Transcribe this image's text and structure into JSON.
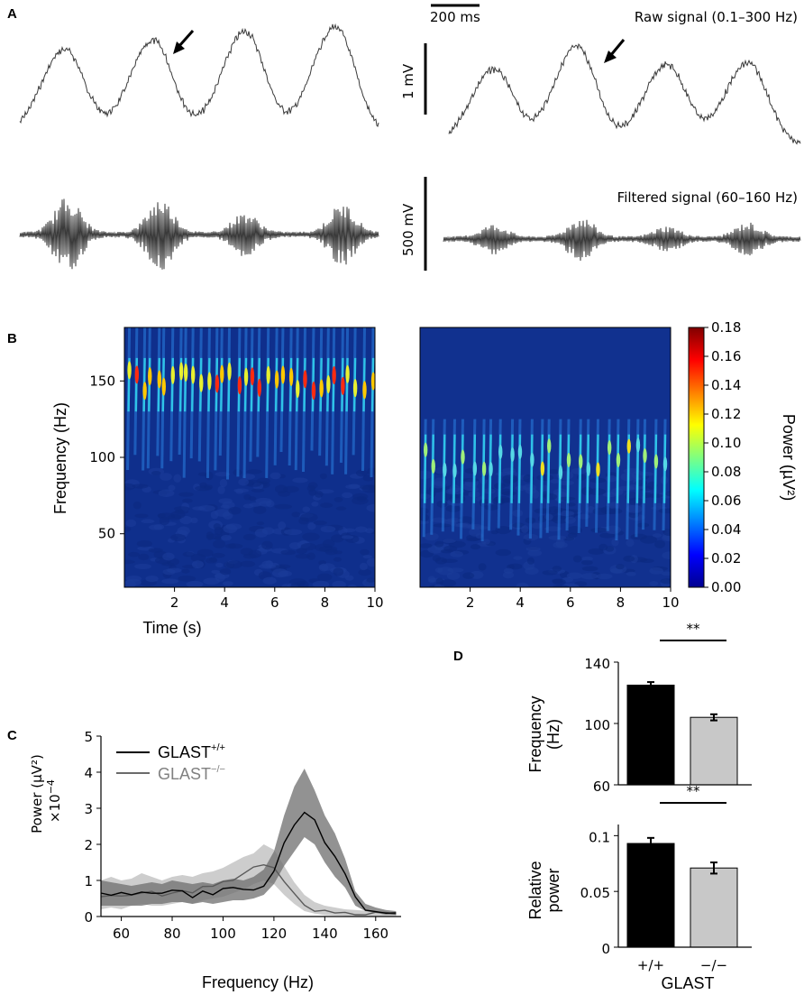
{
  "panels": {
    "a": "A",
    "b": "B",
    "c": "C",
    "d": "D"
  },
  "panel_a": {
    "scalebar_time": "200 ms",
    "raw_label": "Raw signal (0.1–300 Hz)",
    "raw_scale": "1 mV",
    "filtered_label": "Filtered signal (60–160 Hz)",
    "filtered_scale": "500 mV"
  },
  "chart_data": [
    {
      "id": "B-left",
      "type": "heatmap",
      "x_label": "Time (s)",
      "y_label": "Frequency (Hz)",
      "x_ticks": [
        2,
        4,
        6,
        8,
        10
      ],
      "y_ticks": [
        50,
        100,
        150
      ],
      "xlim": [
        0,
        10
      ],
      "ylim": [
        15,
        185
      ],
      "hotspot_band_hz": [
        130,
        165
      ],
      "peak_frequency_hz": 150,
      "note": "GLAST+/+ wavelet spectrogram"
    },
    {
      "id": "B-right",
      "type": "heatmap",
      "x_ticks": [
        2,
        4,
        6,
        8,
        10
      ],
      "xlim": [
        0,
        10
      ],
      "ylim": [
        15,
        185
      ],
      "hotspot_band_hz": [
        70,
        115
      ],
      "peak_frequency_hz": 100,
      "note": "GLAST-/- wavelet spectrogram"
    },
    {
      "id": "B-colorbar",
      "type": "heatmap",
      "label": "Power (µV²)",
      "ticks": [
        "0.18",
        "0.16",
        "0.14",
        "0.12",
        "0.10",
        "0.08",
        "0.06",
        "0.04",
        "0.02",
        "0.00"
      ],
      "range": [
        0,
        0.18
      ]
    },
    {
      "id": "C",
      "type": "line",
      "x_label": "Frequency (Hz)",
      "y_label": "Power (µV²)",
      "y_multiplier": "×10",
      "y_exponent": "−4",
      "x_ticks": [
        60,
        80,
        100,
        120,
        140,
        160
      ],
      "y_ticks": [
        0,
        1,
        2,
        3,
        4,
        5
      ],
      "xlim": [
        52,
        170
      ],
      "ylim": [
        0,
        5
      ],
      "legend_pos": "top-left",
      "series": [
        {
          "name": "GLAST",
          "sup": "+/+",
          "color": "#000000",
          "band_color": "#6e6e6e",
          "x": [
            52,
            56,
            60,
            64,
            68,
            72,
            76,
            80,
            84,
            88,
            92,
            96,
            100,
            104,
            108,
            112,
            116,
            120,
            124,
            128,
            132,
            136,
            140,
            144,
            148,
            152,
            156,
            160,
            164,
            168
          ],
          "y": [
            0.65,
            0.62,
            0.6,
            0.55,
            0.6,
            0.65,
            0.6,
            0.7,
            0.65,
            0.6,
            0.65,
            0.6,
            0.7,
            0.75,
            0.7,
            0.8,
            0.9,
            1.3,
            2.0,
            2.6,
            2.95,
            2.7,
            2.1,
            1.6,
            1.2,
            0.5,
            0.25,
            0.18,
            0.12,
            0.1
          ],
          "lower": [
            0.3,
            0.3,
            0.3,
            0.3,
            0.3,
            0.35,
            0.35,
            0.4,
            0.4,
            0.35,
            0.4,
            0.35,
            0.4,
            0.45,
            0.45,
            0.5,
            0.6,
            0.9,
            1.4,
            1.8,
            2.2,
            2.0,
            1.5,
            1.1,
            0.8,
            0.3,
            0.15,
            0.1,
            0.05,
            0.05
          ],
          "upper": [
            1.0,
            0.95,
            0.9,
            0.85,
            0.9,
            0.95,
            0.9,
            1.0,
            0.95,
            0.9,
            0.95,
            0.9,
            1.0,
            1.05,
            1.0,
            1.1,
            1.3,
            1.8,
            2.8,
            3.6,
            4.1,
            3.5,
            2.8,
            2.3,
            1.6,
            0.7,
            0.35,
            0.25,
            0.18,
            0.15
          ]
        },
        {
          "name": "GLAST",
          "sup": "−/−",
          "color": "#5a5a5a",
          "band_color": "#c8c8c8",
          "x": [
            52,
            56,
            60,
            64,
            68,
            72,
            76,
            80,
            84,
            88,
            92,
            96,
            100,
            104,
            108,
            112,
            116,
            120,
            124,
            128,
            132,
            136,
            140,
            144,
            148,
            152,
            156,
            160,
            164,
            168
          ],
          "y": [
            0.55,
            0.6,
            0.55,
            0.6,
            0.7,
            0.65,
            0.6,
            0.7,
            0.75,
            0.7,
            0.8,
            0.85,
            0.95,
            1.05,
            1.15,
            1.3,
            1.5,
            1.35,
            0.95,
            0.6,
            0.35,
            0.22,
            0.15,
            0.12,
            0.1,
            0.1,
            0.09,
            0.08,
            0.07,
            0.06
          ],
          "lower": [
            0.2,
            0.25,
            0.2,
            0.3,
            0.35,
            0.3,
            0.3,
            0.35,
            0.4,
            0.35,
            0.45,
            0.5,
            0.55,
            0.65,
            0.75,
            0.9,
            1.0,
            0.9,
            0.6,
            0.35,
            0.15,
            0.08,
            0.04,
            0.03,
            0.02,
            0.02,
            0.02,
            0.02,
            0.02,
            0.02
          ],
          "upper": [
            1.0,
            1.1,
            1.0,
            1.05,
            1.2,
            1.1,
            1.0,
            1.1,
            1.15,
            1.1,
            1.2,
            1.25,
            1.35,
            1.5,
            1.65,
            1.75,
            2.0,
            1.85,
            1.4,
            0.95,
            0.6,
            0.4,
            0.3,
            0.25,
            0.2,
            0.18,
            0.16,
            0.14,
            0.12,
            0.1
          ]
        }
      ]
    },
    {
      "id": "D-top",
      "type": "bar",
      "y_label_1": "Frequency",
      "y_label_2": "(Hz)",
      "categories": [
        "+/+",
        "−/−"
      ],
      "values": [
        125,
        104
      ],
      "errors": [
        2,
        2
      ],
      "colors": [
        "#000000",
        "#c8c8c8"
      ],
      "y_ticks": [
        60,
        100,
        140
      ],
      "ylim": [
        60,
        140
      ],
      "significance": "**"
    },
    {
      "id": "D-bottom",
      "type": "bar",
      "y_label_1": "Relative",
      "y_label_2": "power",
      "x_label": "GLAST",
      "categories": [
        "+/+",
        "−/−"
      ],
      "values": [
        0.093,
        0.071
      ],
      "errors": [
        0.005,
        0.005
      ],
      "colors": [
        "#000000",
        "#c8c8c8"
      ],
      "y_ticks": [
        "0",
        "0.05",
        "0.1"
      ],
      "ylim": [
        0,
        0.11
      ],
      "significance": "**"
    }
  ]
}
